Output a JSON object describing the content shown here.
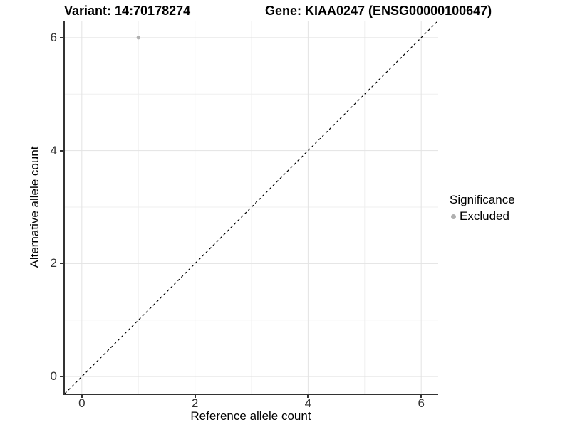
{
  "chart_data": {
    "type": "scatter",
    "title_left": "Variant: 14:70178274",
    "title_right": "Gene: KIAA0247 (ENSG00000100647)",
    "xlabel": "Reference allele count",
    "ylabel": "Alternative allele count",
    "xlim": [
      -0.3,
      6.3
    ],
    "ylim": [
      -0.3,
      6.3
    ],
    "x_major_ticks": [
      0,
      2,
      4,
      6
    ],
    "x_minor_ticks": [
      1,
      3,
      5
    ],
    "y_major_ticks": [
      0,
      2,
      4,
      6
    ],
    "y_minor_ticks": [
      1,
      3,
      5
    ],
    "grid": "major and minor gridlines, no top/right border",
    "legend_position": "right",
    "legend_title": "Significance",
    "series": [
      {
        "name": "Excluded",
        "color": "#b0b0b0",
        "points": [
          [
            1,
            6
          ]
        ]
      }
    ],
    "reference_line": {
      "kind": "identity y=x",
      "from": [
        -0.3,
        -0.3
      ],
      "to": [
        6.3,
        6.3
      ],
      "style": "dashed",
      "color": "#000000"
    },
    "style": {
      "background": "#ffffff",
      "grid_major_color": "#e3e3e3",
      "grid_minor_color": "#efefef",
      "axis_line_color": "#333333",
      "tick_label_color": "#333333",
      "title_color": "#000000",
      "point_radius": 2.6,
      "legend_dot_diameter": 7
    }
  }
}
